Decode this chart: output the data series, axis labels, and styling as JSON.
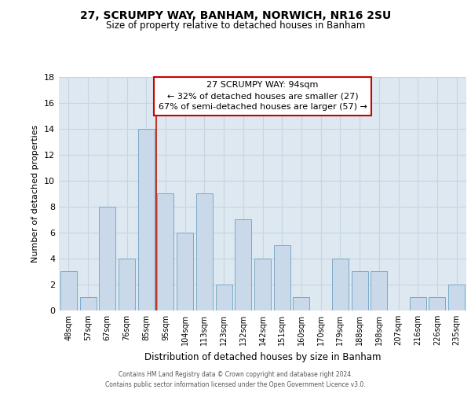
{
  "title1": "27, SCRUMPY WAY, BANHAM, NORWICH, NR16 2SU",
  "title2": "Size of property relative to detached houses in Banham",
  "xlabel": "Distribution of detached houses by size in Banham",
  "ylabel": "Number of detached properties",
  "footer1": "Contains HM Land Registry data © Crown copyright and database right 2024.",
  "footer2": "Contains public sector information licensed under the Open Government Licence v3.0.",
  "categories": [
    "48sqm",
    "57sqm",
    "67sqm",
    "76sqm",
    "85sqm",
    "95sqm",
    "104sqm",
    "113sqm",
    "123sqm",
    "132sqm",
    "142sqm",
    "151sqm",
    "160sqm",
    "170sqm",
    "179sqm",
    "188sqm",
    "198sqm",
    "207sqm",
    "216sqm",
    "226sqm",
    "235sqm"
  ],
  "values": [
    3,
    1,
    8,
    4,
    14,
    9,
    6,
    9,
    2,
    7,
    4,
    5,
    1,
    0,
    4,
    3,
    3,
    0,
    1,
    1,
    2
  ],
  "bar_color": "#c9d9ea",
  "bar_edge_color": "#7aaac8",
  "vline_x_index": 5,
  "vline_color": "#c0392b",
  "annotation_box_text": "27 SCRUMPY WAY: 94sqm\n← 32% of detached houses are smaller (27)\n67% of semi-detached houses are larger (57) →",
  "annotation_box_facecolor": "white",
  "annotation_box_edgecolor": "#cc0000",
  "ylim": [
    0,
    18
  ],
  "yticks": [
    0,
    2,
    4,
    6,
    8,
    10,
    12,
    14,
    16,
    18
  ],
  "grid_color": "#c8d4e0",
  "bg_color": "#dde8f0"
}
